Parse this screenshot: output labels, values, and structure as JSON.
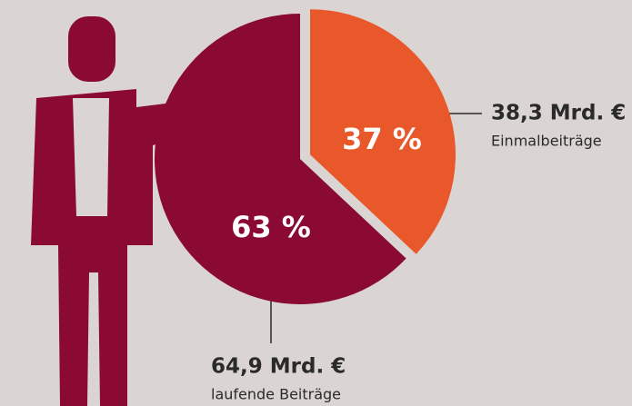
{
  "chart_data": {
    "type": "pie",
    "categories": [
      "Einmalbeiträge",
      "laufende Beiträge"
    ],
    "values": [
      37,
      63
    ],
    "value_labels": [
      "37 %",
      "63 %"
    ],
    "amount_labels": [
      "38,3 Mrd. €",
      "64,9 Mrd. €"
    ],
    "colors": [
      "#e8582a",
      "#8a0a33"
    ]
  }
}
